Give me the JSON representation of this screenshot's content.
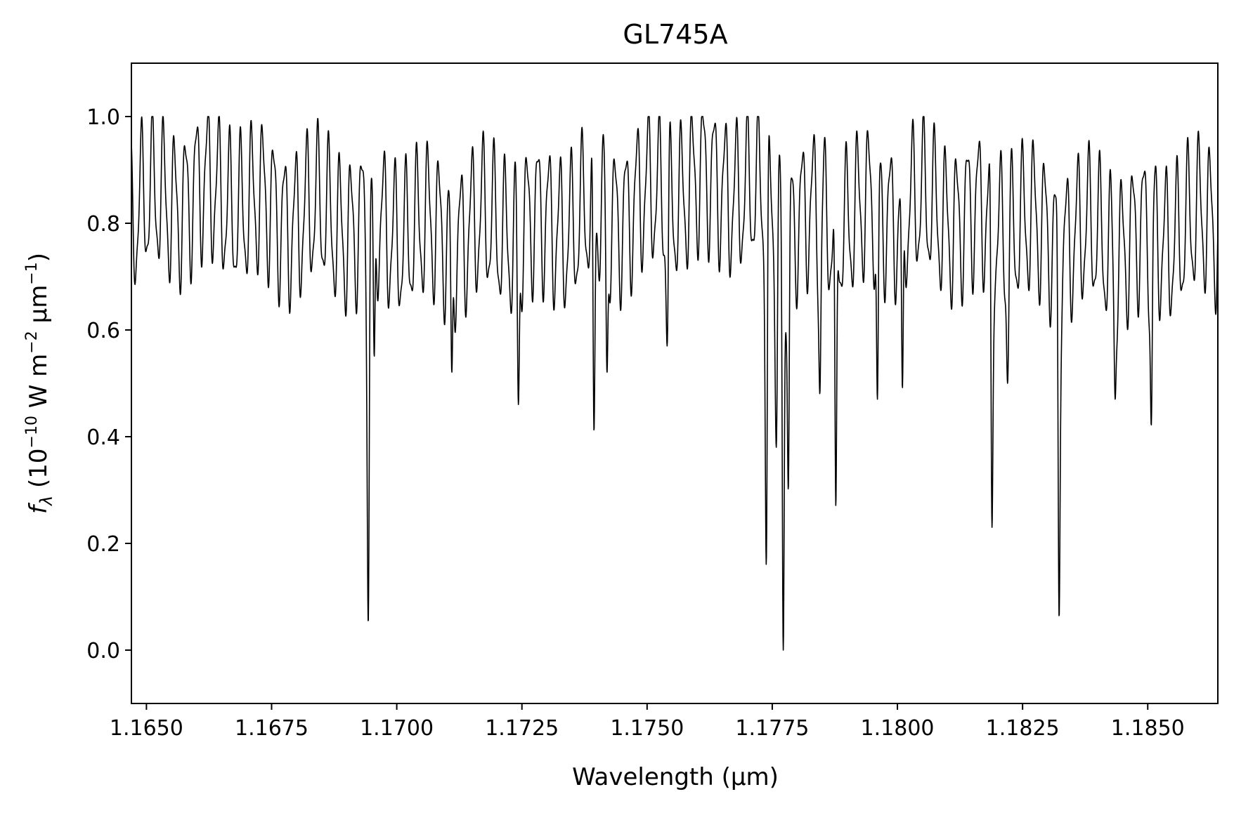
{
  "chart_data": {
    "type": "line",
    "title": "GL745A",
    "xlabel": "Wavelength (μm)",
    "ylabel": {
      "symbol": "f",
      "symbol_sub": "λ",
      "open": " (10",
      "exp1": "−10",
      "mid": " W m",
      "exp2": "−2",
      "mid2": " μm",
      "exp3": "−1",
      "close": ")"
    },
    "xlim": [
      1.1647,
      1.1864
    ],
    "ylim": [
      -0.1,
      1.1
    ],
    "xticks": [
      1.165,
      1.1675,
      1.17,
      1.1725,
      1.175,
      1.1775,
      1.18,
      1.1825,
      1.185
    ],
    "xtick_labels": [
      "1.1650",
      "1.1675",
      "1.1700",
      "1.1725",
      "1.1750",
      "1.1775",
      "1.1800",
      "1.1825",
      "1.1850"
    ],
    "yticks": [
      0.0,
      0.2,
      0.4,
      0.6,
      0.8,
      1.0
    ],
    "ytick_labels": [
      "0.0",
      "0.2",
      "0.4",
      "0.6",
      "0.8",
      "1.0"
    ],
    "grid": false,
    "line_color": "#000000",
    "series": [
      {
        "continuum": [
          [
            1.1647,
            0.82
          ],
          [
            1.166,
            0.86
          ],
          [
            1.1675,
            0.82
          ],
          [
            1.169,
            0.8
          ],
          [
            1.1705,
            0.78
          ],
          [
            1.172,
            0.79
          ],
          [
            1.1735,
            0.8
          ],
          [
            1.175,
            0.84
          ],
          [
            1.1765,
            0.88
          ],
          [
            1.1775,
            0.82
          ],
          [
            1.1785,
            0.8
          ],
          [
            1.18,
            0.83
          ],
          [
            1.1815,
            0.81
          ],
          [
            1.183,
            0.78
          ],
          [
            1.1845,
            0.76
          ],
          [
            1.1864,
            0.8
          ]
        ],
        "oscillation_amplitude": 0.13,
        "oscillation_period": 0.00022,
        "absorption_lines": [
          {
            "x": 1.16943,
            "depth": 0.05
          },
          {
            "x": 1.16955,
            "depth": 0.55
          },
          {
            "x": 1.1711,
            "depth": 0.52
          },
          {
            "x": 1.17243,
            "depth": 0.46
          },
          {
            "x": 1.17394,
            "depth": 0.41
          },
          {
            "x": 1.1742,
            "depth": 0.52
          },
          {
            "x": 1.1754,
            "depth": 0.57
          },
          {
            "x": 1.17738,
            "depth": 0.16
          },
          {
            "x": 1.17758,
            "depth": 0.38
          },
          {
            "x": 1.17772,
            "depth": 0.0
          },
          {
            "x": 1.17782,
            "depth": 0.3
          },
          {
            "x": 1.17845,
            "depth": 0.48
          },
          {
            "x": 1.17877,
            "depth": 0.27
          },
          {
            "x": 1.1796,
            "depth": 0.47
          },
          {
            "x": 1.1801,
            "depth": 0.49
          },
          {
            "x": 1.18189,
            "depth": 0.23
          },
          {
            "x": 1.1822,
            "depth": 0.5
          },
          {
            "x": 1.18323,
            "depth": 0.06
          },
          {
            "x": 1.18435,
            "depth": 0.47
          },
          {
            "x": 1.18507,
            "depth": 0.42
          }
        ],
        "max_value": 1.0
      }
    ]
  }
}
